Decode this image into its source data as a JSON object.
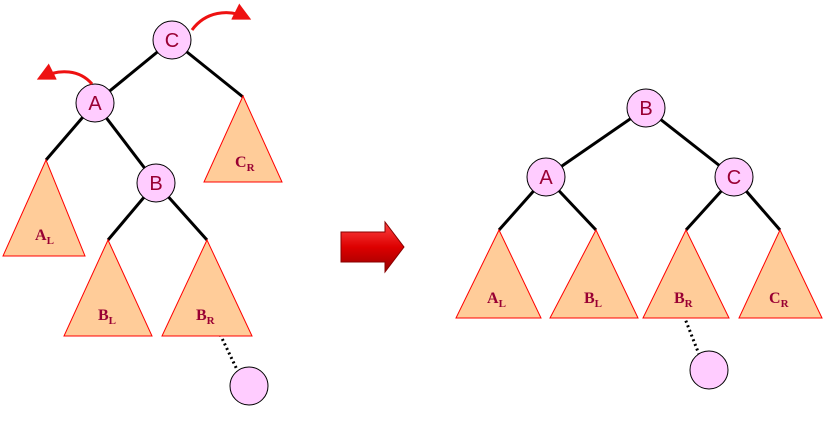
{
  "before_tree": {
    "nodes": {
      "root": "C",
      "left": "A",
      "mid": "B"
    },
    "subtrees": {
      "al": {
        "main": "A",
        "sub": "L"
      },
      "bl": {
        "main": "B",
        "sub": "L"
      },
      "br": {
        "main": "B",
        "sub": "R"
      },
      "cr": {
        "main": "C",
        "sub": "R"
      }
    }
  },
  "after_tree": {
    "nodes": {
      "root": "B",
      "left": "A",
      "right": "C"
    },
    "subtrees": {
      "al": {
        "main": "A",
        "sub": "L"
      },
      "bl": {
        "main": "B",
        "sub": "L"
      },
      "br": {
        "main": "B",
        "sub": "R"
      },
      "cr": {
        "main": "C",
        "sub": "R"
      }
    }
  },
  "colors": {
    "node_fill": "#ffccff",
    "triangle_fill": "#ffcc99",
    "triangle_stroke": "#ff0000",
    "label": "#990033",
    "rotation_arrow": "#ee1111",
    "transition_arrow": "#ee1111"
  }
}
